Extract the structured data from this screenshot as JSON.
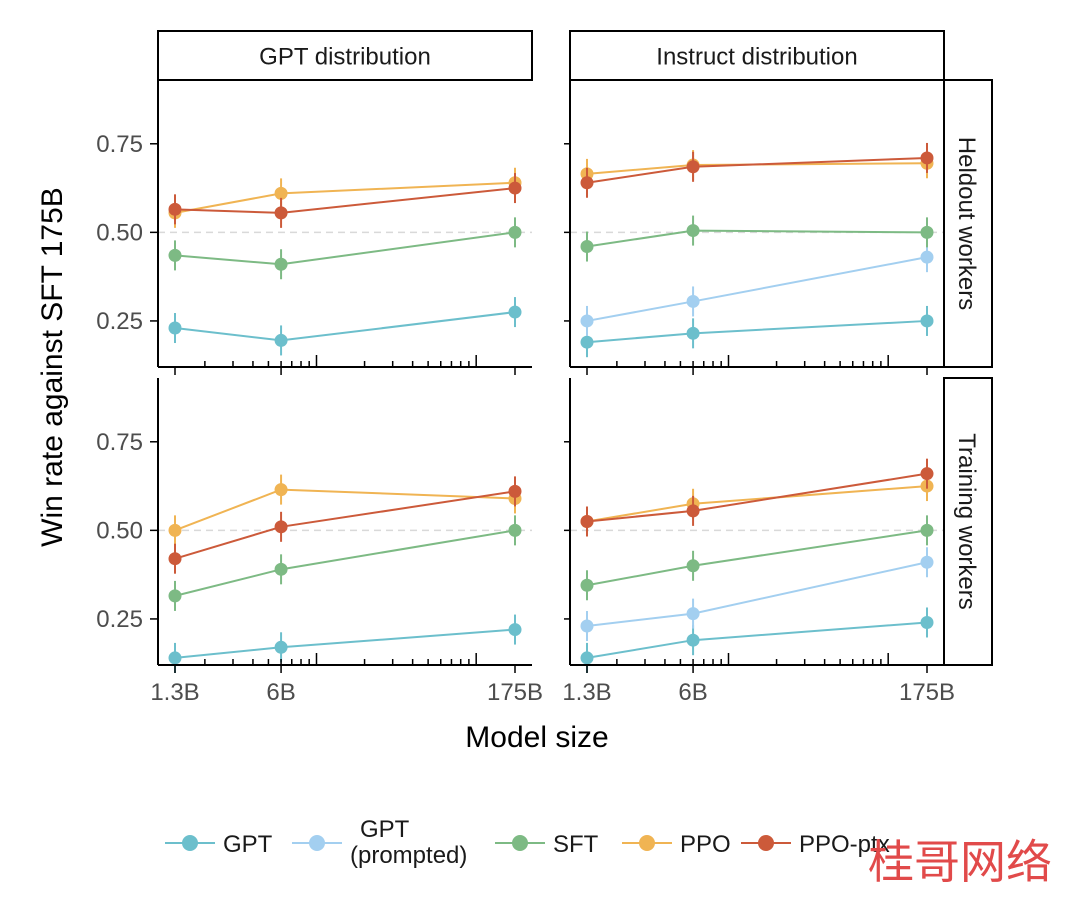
{
  "chart_data": {
    "type": "line",
    "ylabel": "Win rate against SFT 175B",
    "xlabel": "Model size",
    "x_scale": "log",
    "x_ticks": [
      "1.3B",
      "6B",
      "175B"
    ],
    "y_ticks": [
      "0.25",
      "0.50",
      "0.75"
    ],
    "ylim": [
      0.12,
      0.93
    ],
    "reference_line": 0.5,
    "columns": [
      "GPT distribution",
      "Instruct distribution"
    ],
    "rows": [
      "Heldout workers",
      "Training workers"
    ],
    "legend": [
      {
        "key": "GPT",
        "label": "GPT",
        "color": "#6cbfcc"
      },
      {
        "key": "GPT_prompted",
        "label": "GPT\n(prompted)",
        "color": "#a3cff0"
      },
      {
        "key": "SFT",
        "label": "SFT",
        "color": "#7dba84"
      },
      {
        "key": "PPO",
        "label": "PPO",
        "color": "#f0b453"
      },
      {
        "key": "PPO_ptx",
        "label": "PPO-ptx",
        "color": "#cc5a3a"
      }
    ],
    "panels": [
      {
        "column": "GPT distribution",
        "row": "Heldout workers",
        "series": [
          {
            "name": "GPT",
            "values": [
              0.23,
              0.195,
              0.275
            ]
          },
          {
            "name": "SFT",
            "values": [
              0.435,
              0.41,
              0.5
            ]
          },
          {
            "name": "PPO",
            "values": [
              0.555,
              0.61,
              0.64
            ]
          },
          {
            "name": "PPO-ptx",
            "values": [
              0.565,
              0.555,
              0.625
            ]
          }
        ]
      },
      {
        "column": "Instruct distribution",
        "row": "Heldout workers",
        "series": [
          {
            "name": "GPT",
            "values": [
              0.19,
              0.215,
              0.25
            ]
          },
          {
            "name": "GPT (prompted)",
            "values": [
              0.25,
              0.305,
              0.43
            ]
          },
          {
            "name": "SFT",
            "values": [
              0.46,
              0.505,
              0.5
            ]
          },
          {
            "name": "PPO",
            "values": [
              0.665,
              0.69,
              0.695
            ]
          },
          {
            "name": "PPO-ptx",
            "values": [
              0.64,
              0.685,
              0.71
            ]
          }
        ]
      },
      {
        "column": "GPT distribution",
        "row": "Training workers",
        "series": [
          {
            "name": "GPT",
            "values": [
              0.14,
              0.17,
              0.22
            ]
          },
          {
            "name": "SFT",
            "values": [
              0.315,
              0.39,
              0.5
            ]
          },
          {
            "name": "PPO",
            "values": [
              0.5,
              0.615,
              0.59
            ]
          },
          {
            "name": "PPO-ptx",
            "values": [
              0.42,
              0.51,
              0.61
            ]
          }
        ]
      },
      {
        "column": "Instruct distribution",
        "row": "Training workers",
        "series": [
          {
            "name": "GPT",
            "values": [
              0.14,
              0.19,
              0.24
            ]
          },
          {
            "name": "GPT (prompted)",
            "values": [
              0.23,
              0.265,
              0.41
            ]
          },
          {
            "name": "SFT",
            "values": [
              0.345,
              0.4,
              0.5
            ]
          },
          {
            "name": "PPO",
            "values": [
              0.525,
              0.575,
              0.625
            ]
          },
          {
            "name": "PPO-ptx",
            "values": [
              0.525,
              0.555,
              0.66
            ]
          }
        ]
      }
    ],
    "watermark": "桂哥网络"
  }
}
